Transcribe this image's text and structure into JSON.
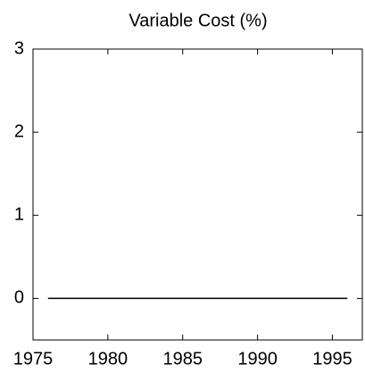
{
  "chart_data": {
    "type": "line",
    "title": "Variable Cost (%)",
    "x": [
      1976,
      1977,
      1978,
      1979,
      1980,
      1981,
      1982,
      1983,
      1984,
      1985,
      1986,
      1987,
      1988,
      1989,
      1990,
      1991,
      1992,
      1993,
      1994,
      1995,
      1996
    ],
    "series": [
      {
        "color": "#000000",
        "values": [
          0,
          0,
          0,
          0,
          0,
          0,
          0,
          0,
          0,
          0,
          0,
          0,
          0,
          0,
          0,
          0,
          0,
          0,
          0,
          0,
          0
        ]
      }
    ],
    "xlim": [
      1975,
      1997
    ],
    "xticks": [
      1975,
      1980,
      1985,
      1990,
      1995
    ],
    "ylim": [
      -0.5,
      3
    ],
    "yticks": [
      0,
      1,
      2,
      3
    ],
    "grid": false
  }
}
